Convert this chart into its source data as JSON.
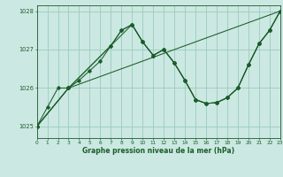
{
  "title": "Graphe pression niveau de la mer (hPa)",
  "bg": "#cce8e2",
  "grid_color": "#99ccbb",
  "lc": "#1a5c2a",
  "xlim": [
    0,
    23
  ],
  "ylim": [
    1024.7,
    1028.15
  ],
  "yticks": [
    1025,
    1026,
    1027,
    1028
  ],
  "xticks": [
    0,
    1,
    2,
    3,
    4,
    5,
    6,
    7,
    8,
    9,
    10,
    11,
    12,
    13,
    14,
    15,
    16,
    17,
    18,
    19,
    20,
    21,
    22,
    23
  ],
  "series": [
    {
      "x": [
        0,
        1,
        2,
        3,
        4,
        5,
        6,
        7,
        8,
        9,
        10,
        11,
        12,
        13,
        14,
        15,
        16,
        17,
        18,
        19,
        20,
        21,
        22,
        23
      ],
      "y": [
        1025.0,
        1025.5,
        1026.0,
        1026.0,
        1026.2,
        1026.45,
        1026.7,
        1027.1,
        1027.5,
        1027.65,
        1027.2,
        1026.85,
        1027.0,
        1026.65,
        1026.2,
        1025.7,
        1025.6,
        1025.62,
        1025.75,
        1026.0,
        1026.6,
        1027.15,
        1027.5,
        1028.0
      ]
    },
    {
      "x": [
        0,
        3,
        23
      ],
      "y": [
        1025.0,
        1026.0,
        1028.0
      ]
    },
    {
      "x": [
        0,
        3,
        9,
        10,
        11,
        12,
        13,
        14,
        15,
        16,
        17,
        18,
        19,
        20,
        21,
        22,
        23
      ],
      "y": [
        1025.0,
        1026.0,
        1027.65,
        1027.2,
        1026.85,
        1027.0,
        1026.65,
        1026.2,
        1025.7,
        1025.6,
        1025.62,
        1025.75,
        1026.0,
        1026.6,
        1027.15,
        1027.5,
        1028.0
      ]
    },
    {
      "x": [
        0,
        3,
        7,
        8,
        9,
        10,
        11,
        12,
        13,
        14,
        15,
        16,
        17,
        18,
        19,
        20,
        21,
        22,
        23
      ],
      "y": [
        1025.0,
        1026.0,
        1027.1,
        1027.5,
        1027.65,
        1027.2,
        1026.85,
        1027.0,
        1026.65,
        1026.2,
        1025.7,
        1025.6,
        1025.62,
        1025.75,
        1026.0,
        1026.6,
        1027.15,
        1027.5,
        1028.0
      ]
    }
  ]
}
